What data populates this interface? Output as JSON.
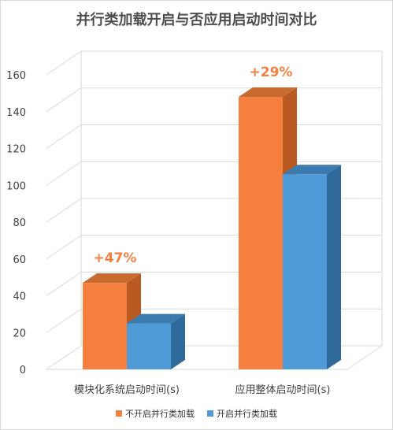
{
  "chart_data": {
    "type": "bar",
    "title": "并行类加载开启与否应用启动时间对比",
    "categories": [
      "模块化系统启动时间(s)",
      "应用整体启动时间(s)"
    ],
    "series": [
      {
        "name": "不开启并行类加载",
        "values": [
          47,
          148
        ],
        "color": "#F47F3F",
        "dark": "#B85A22",
        "top": "#C96A2E"
      },
      {
        "name": "开启并行类加载",
        "values": [
          25,
          106
        ],
        "color": "#4E9BD8",
        "dark": "#2F6A9A",
        "top": "#3C7BB0"
      }
    ],
    "annotations": [
      "+47%",
      "+29%"
    ],
    "annotation_color": "#F47F3F",
    "yticks": [
      "0",
      "20",
      "40",
      "60",
      "80",
      "100",
      "120",
      "140",
      "160"
    ],
    "ylim": [
      0,
      160
    ],
    "grid": true,
    "legend_position": "bottom"
  }
}
